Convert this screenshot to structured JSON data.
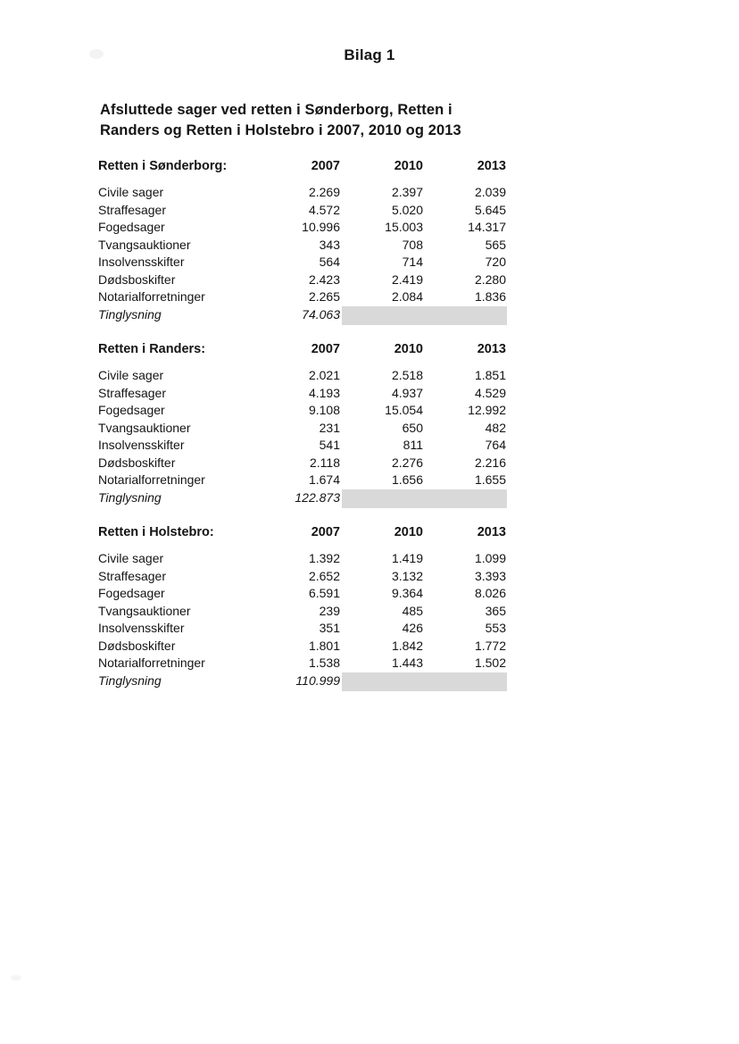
{
  "page": {
    "title": "Bilag 1",
    "heading_line1": "Afsluttede sager ved retten i Sønderborg, Retten i",
    "heading_line2": "Randers og Retten i Holstebro i 2007, 2010 og 2013",
    "shading_color": "#d9d9d9"
  },
  "tables": [
    {
      "title": "Retten i Sønderborg:",
      "years": [
        "2007",
        "2010",
        "2013"
      ],
      "rows": [
        {
          "label": "Civile sager",
          "values": [
            "2.269",
            "2.397",
            "2.039"
          ]
        },
        {
          "label": "Straffesager",
          "values": [
            "4.572",
            "5.020",
            "5.645"
          ]
        },
        {
          "label": "Fogedsager",
          "values": [
            "10.996",
            "15.003",
            "14.317"
          ]
        },
        {
          "label": "Tvangsauktioner",
          "values": [
            "343",
            "708",
            "565"
          ]
        },
        {
          "label": "Insolvensskifter",
          "values": [
            "564",
            "714",
            "720"
          ]
        },
        {
          "label": "Dødsboskifter",
          "values": [
            "2.423",
            "2.419",
            "2.280"
          ]
        },
        {
          "label": "Notarialforretninger",
          "values": [
            "2.265",
            "2.084",
            "1.836"
          ]
        }
      ],
      "tinglysning": {
        "label": "Tinglysning",
        "value": "74.063"
      }
    },
    {
      "title": "Retten i Randers:",
      "years": [
        "2007",
        "2010",
        "2013"
      ],
      "rows": [
        {
          "label": "Civile sager",
          "values": [
            "2.021",
            "2.518",
            "1.851"
          ]
        },
        {
          "label": "Straffesager",
          "values": [
            "4.193",
            "4.937",
            "4.529"
          ]
        },
        {
          "label": "Fogedsager",
          "values": [
            "9.108",
            "15.054",
            "12.992"
          ]
        },
        {
          "label": "Tvangsauktioner",
          "values": [
            "231",
            "650",
            "482"
          ]
        },
        {
          "label": "Insolvensskifter",
          "values": [
            "541",
            "811",
            "764"
          ]
        },
        {
          "label": "Dødsboskifter",
          "values": [
            "2.118",
            "2.276",
            "2.216"
          ]
        },
        {
          "label": "Notarialforretninger",
          "values": [
            "1.674",
            "1.656",
            "1.655"
          ]
        }
      ],
      "tinglysning": {
        "label": "Tinglysning",
        "value": "122.873"
      }
    },
    {
      "title": "Retten i Holstebro:",
      "years": [
        "2007",
        "2010",
        "2013"
      ],
      "rows": [
        {
          "label": "Civile sager",
          "values": [
            "1.392",
            "1.419",
            "1.099"
          ]
        },
        {
          "label": "Straffesager",
          "values": [
            "2.652",
            "3.132",
            "3.393"
          ]
        },
        {
          "label": "Fogedsager",
          "values": [
            "6.591",
            "9.364",
            "8.026"
          ]
        },
        {
          "label": "Tvangsauktioner",
          "values": [
            "239",
            "485",
            "365"
          ]
        },
        {
          "label": "Insolvensskifter",
          "values": [
            "351",
            "426",
            "553"
          ]
        },
        {
          "label": "Dødsboskifter",
          "values": [
            "1.801",
            "1.842",
            "1.772"
          ]
        },
        {
          "label": "Notarialforretninger",
          "values": [
            "1.538",
            "1.443",
            "1.502"
          ]
        }
      ],
      "tinglysning": {
        "label": "Tinglysning",
        "value": "110.999"
      }
    }
  ]
}
